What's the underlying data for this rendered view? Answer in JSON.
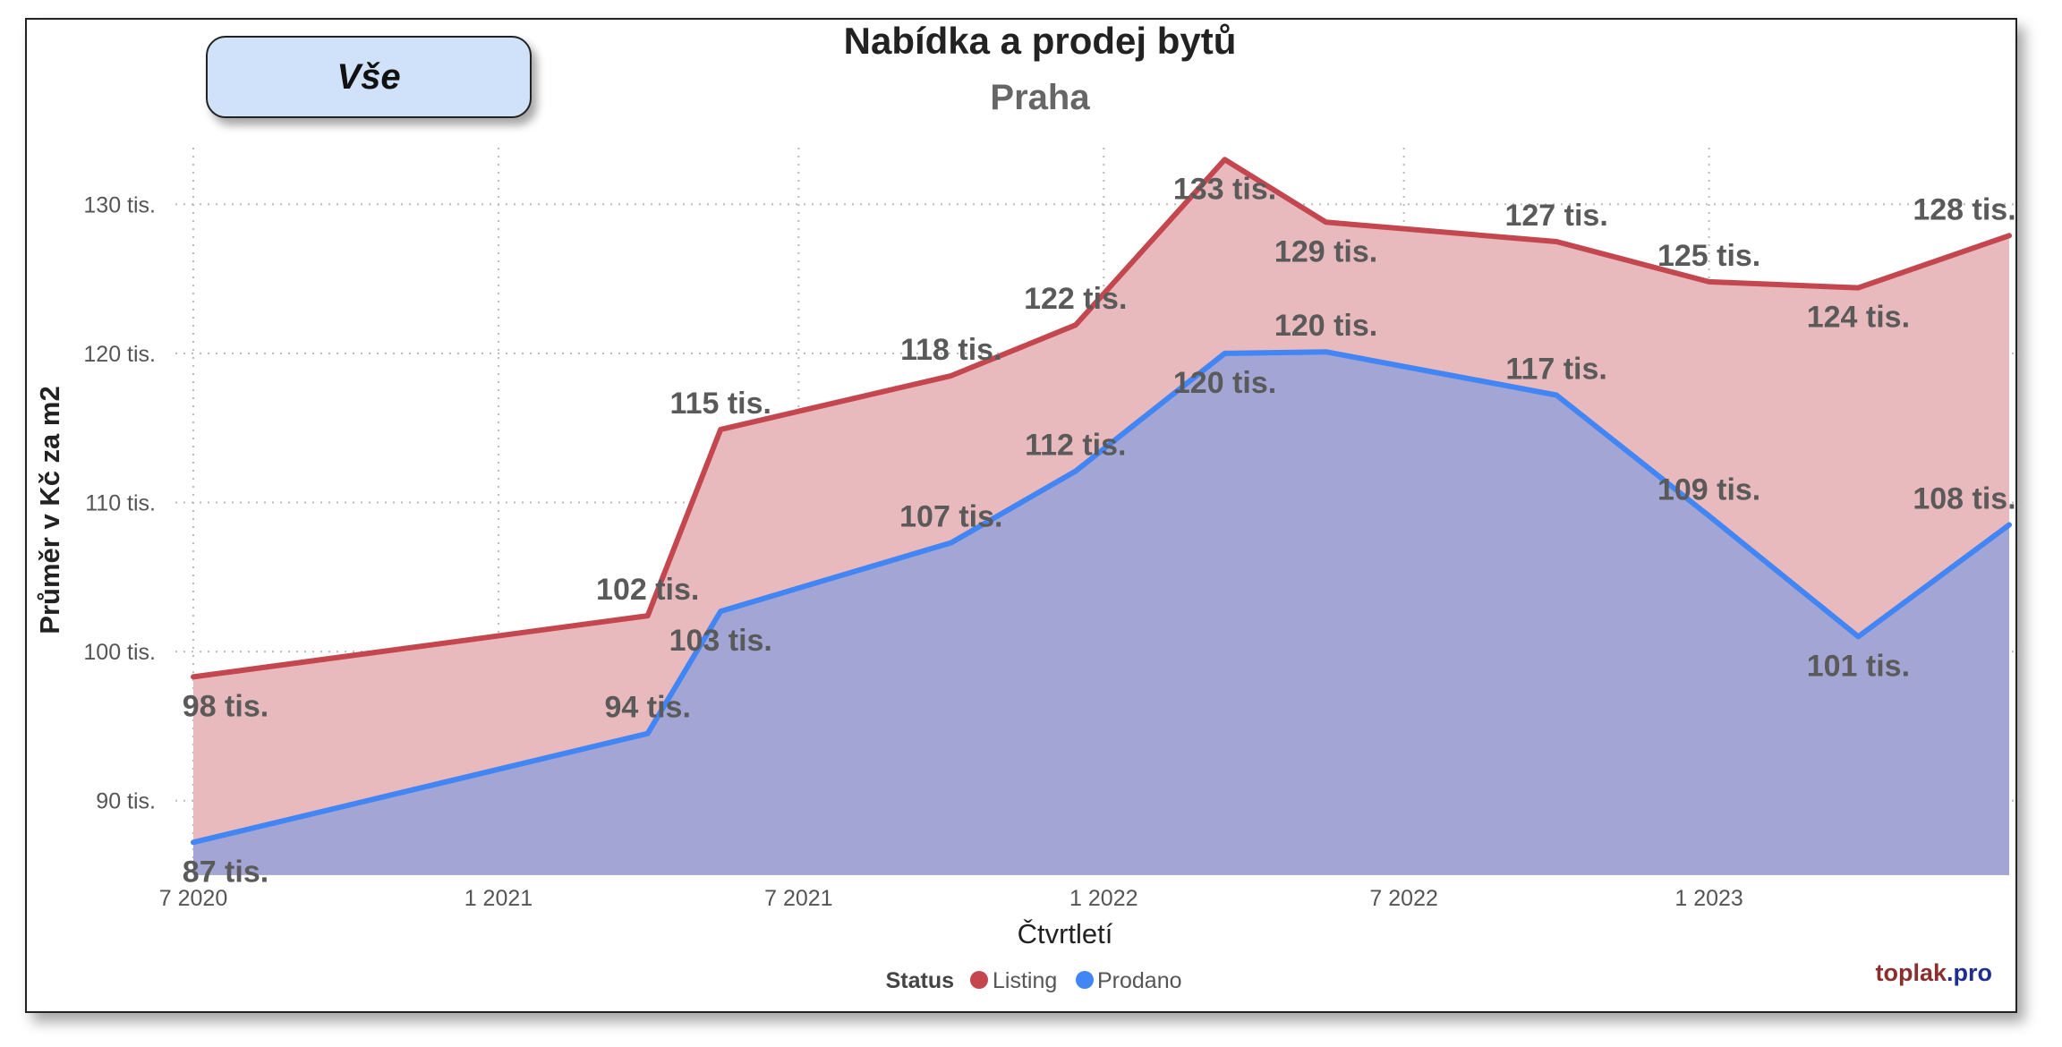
{
  "filter": {
    "label": "Vše"
  },
  "colors": {
    "listing_line": "#c4474f",
    "listing_fill": "#e8babd",
    "sold_line": "#4285f4",
    "sold_fill": "#a3a6d4",
    "brand_dark": "#8b2e2e",
    "brand_blue": "#1f2f8f"
  },
  "legend": {
    "title": "Status",
    "items": [
      "Listing",
      "Prodano"
    ]
  },
  "brand": {
    "name": "toplak",
    "suffix": ".pro"
  },
  "chart_data": {
    "type": "area",
    "title": "Nabídka a prodej bytů",
    "subtitle": "Praha",
    "xlabel": "Čtvrtletí",
    "ylabel": "Průměr v Kč za m2",
    "ylim": [
      85000,
      135000
    ],
    "yticks": [
      90000,
      100000,
      110000,
      120000,
      130000
    ],
    "ytick_labels": [
      "90 tis.",
      "100 tis.",
      "110 tis.",
      "120 tis.",
      "130 tis."
    ],
    "xticks": [
      "2020-07-01",
      "2021-01-01",
      "2021-07-01",
      "2022-01-01",
      "2022-07-01",
      "2023-01-01"
    ],
    "xtick_labels": [
      "7 2020",
      "1 2021",
      "7 2021",
      "1 2022",
      "7 2022",
      "1 2023"
    ],
    "xlim": [
      "2020-07-01",
      "2023-07-01"
    ],
    "grid": true,
    "legend_position": "bottom-center",
    "x": [
      "2020-07-01",
      "2021-04-01",
      "2021-05-15",
      "2021-10-01",
      "2021-12-15",
      "2022-03-15",
      "2022-05-15",
      "2022-10-01",
      "2023-01-01",
      "2023-04-01",
      "2023-07-01"
    ],
    "series": [
      {
        "name": "Listing",
        "values": [
          98300,
          102400,
          114900,
          118500,
          121900,
          133000,
          128800,
          127500,
          124800,
          124400,
          127900
        ],
        "labels": [
          "98 tis.",
          "102 tis.",
          "115 tis.",
          "118 tis.",
          "122 tis.",
          "133 tis.",
          "129 tis.",
          "127 tis.",
          "125 tis.",
          "124 tis.",
          "128 tis."
        ]
      },
      {
        "name": "Prodano",
        "values": [
          87200,
          94500,
          102700,
          107300,
          112100,
          120000,
          120100,
          117200,
          109100,
          101000,
          108500
        ],
        "labels": [
          "87 tis.",
          "94 tis.",
          "103 tis.",
          "107 tis.",
          "112 tis.",
          "120 tis.",
          "120 tis.",
          "117 tis.",
          "109 tis.",
          "101 tis.",
          "108 tis."
        ]
      }
    ]
  }
}
